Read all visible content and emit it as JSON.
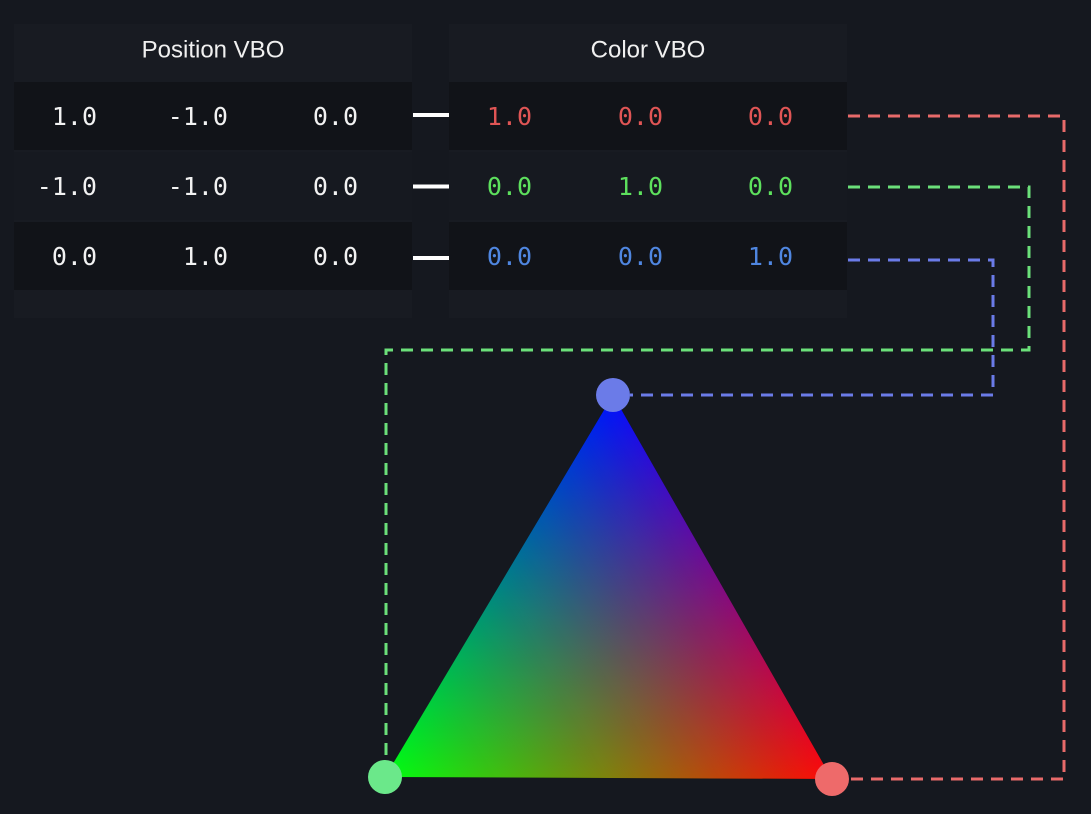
{
  "panels": [
    {
      "title": "Position VBO",
      "rows": [
        [
          "1.0",
          "-1.0",
          "0.0"
        ],
        [
          "-1.0",
          "-1.0",
          "0.0"
        ],
        [
          "0.0",
          "1.0",
          "0.0"
        ]
      ]
    },
    {
      "title": "Color VBO",
      "rows": [
        [
          "1.0",
          "0.0",
          "0.0"
        ],
        [
          "0.0",
          "1.0",
          "0.0"
        ],
        [
          "0.0",
          "0.0",
          "1.0"
        ]
      ]
    }
  ]
}
